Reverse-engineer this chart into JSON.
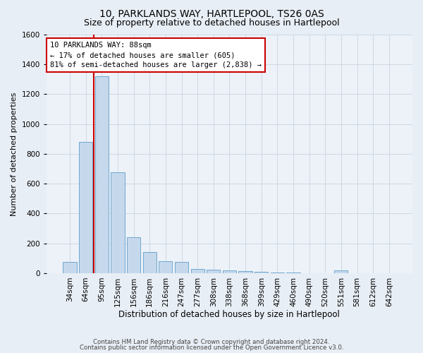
{
  "title": "10, PARKLANDS WAY, HARTLEPOOL, TS26 0AS",
  "subtitle": "Size of property relative to detached houses in Hartlepool",
  "xlabel_dist": "Distribution of detached houses by size in Hartlepool",
  "ylabel": "Number of detached properties",
  "footer1": "Contains HM Land Registry data © Crown copyright and database right 2024.",
  "footer2": "Contains public sector information licensed under the Open Government Licence v3.0.",
  "categories": [
    "34sqm",
    "64sqm",
    "95sqm",
    "125sqm",
    "156sqm",
    "186sqm",
    "216sqm",
    "247sqm",
    "277sqm",
    "308sqm",
    "338sqm",
    "368sqm",
    "399sqm",
    "429sqm",
    "460sqm",
    "490sqm",
    "520sqm",
    "551sqm",
    "581sqm",
    "612sqm",
    "642sqm"
  ],
  "values": [
    75,
    880,
    1320,
    675,
    240,
    140,
    80,
    75,
    30,
    25,
    20,
    12,
    8,
    5,
    3,
    0,
    0,
    18,
    0,
    0,
    0
  ],
  "bar_color": "#c5d8ec",
  "bar_edge_color": "#6fa8d0",
  "bar_width": 0.85,
  "red_line_x": 1.5,
  "red_line_color": "#cc0000",
  "annotation_text": "10 PARKLANDS WAY: 88sqm\n← 17% of detached houses are smaller (605)\n81% of semi-detached houses are larger (2,838) →",
  "annotation_box_color": "#ffffff",
  "annotation_box_edge": "#cc0000",
  "ylim": [
    0,
    1600
  ],
  "yticks": [
    0,
    200,
    400,
    600,
    800,
    1000,
    1200,
    1400,
    1600
  ],
  "bg_color": "#e8eef5",
  "plot_bg_color": "#edf2f8",
  "grid_color": "#c8d4e0",
  "title_fontsize": 10,
  "subtitle_fontsize": 9,
  "tick_fontsize": 7.5,
  "ylabel_fontsize": 8,
  "xlabel_fontsize": 8.5,
  "annotation_fontsize": 7.5
}
